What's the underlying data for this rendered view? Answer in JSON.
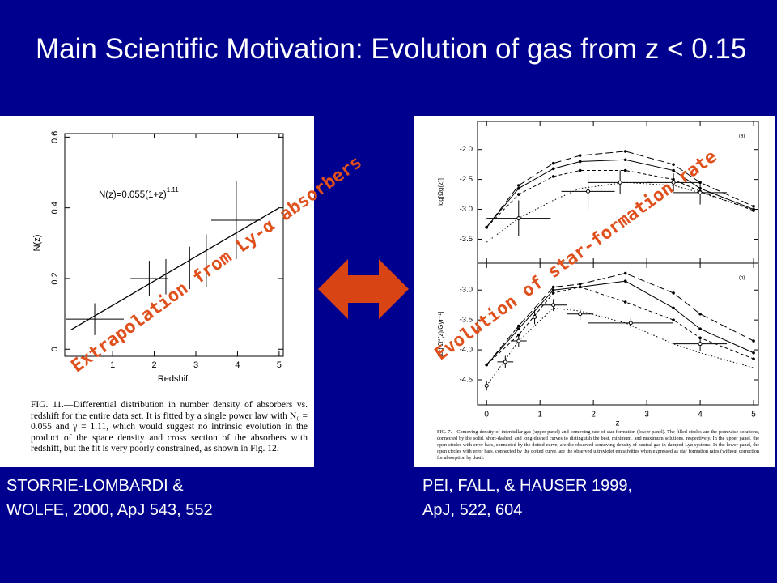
{
  "title": "Main Scientific Motivation:  Evolution of gas from z < 0.15",
  "left_figure": {
    "type": "scatter",
    "xlabel": "Redshift",
    "ylabel": "N(z)",
    "formula": "N(z)=0.055(1+z)",
    "formula_exponent": "1.11",
    "xlim": [
      -0.15,
      5.1
    ],
    "ylim": [
      -0.02,
      0.61
    ],
    "xticks": [
      1,
      2,
      3,
      4,
      5
    ],
    "yticks": [
      0,
      0.2,
      0.4,
      0.6
    ],
    "points": {
      "x": [
        0.57,
        1.88,
        2.28,
        2.85,
        3.25,
        3.97
      ],
      "y": [
        0.085,
        0.2,
        0.205,
        0.23,
        0.25,
        0.365
      ],
      "yerr": [
        0.045,
        0.05,
        0.05,
        0.06,
        0.075,
        0.11
      ],
      "xerr": [
        0.7,
        0.45,
        null,
        null,
        null,
        0.6
      ]
    },
    "fit": {
      "x": [
        0,
        5
      ],
      "y": [
        0.055,
        0.4
      ]
    },
    "caption": "FIG. 11.—Differential distribution in number density of absorbers vs. redshift for the entire data set. It is fitted by a single power law with N₀ = 0.055 and γ = 1.11, which would suggest no intrinsic evolution in the product of the space density and cross section of the absorbers with redshift, but the fit is very poorly constrained, as shown in Fig. 12."
  },
  "right_figure": {
    "type": "line",
    "xlabel": "z",
    "xlim": [
      -0.17,
      5.09
    ],
    "xticks": [
      0,
      1,
      2,
      3,
      4,
      5
    ],
    "x": [
      0,
      0.6,
      1.25,
      1.75,
      2.6,
      3.5,
      4,
      5
    ],
    "panels": [
      {
        "tag": "(a)",
        "ylabel": "log[Ωg(z)]",
        "ylim": [
          -3.9,
          -1.53
        ],
        "yticks": [
          {
            "value": -2.0,
            "label": "-2.0"
          },
          {
            "value": -2.5,
            "label": "-2.5"
          },
          {
            "value": -3.0,
            "label": "-3.0"
          },
          {
            "value": -3.5,
            "label": "-3.5"
          }
        ],
        "series": [
          {
            "style": "long-dash",
            "values": [
              -3.3,
              -2.6,
              -2.23,
              -2.1,
              -2.03,
              -2.25,
              -2.55,
              -2.95
            ]
          },
          {
            "style": "solid",
            "values": [
              -3.3,
              -2.65,
              -2.32,
              -2.2,
              -2.17,
              -2.35,
              -2.65,
              -3.0
            ]
          },
          {
            "style": "short-dash",
            "values": [
              -3.3,
              -2.75,
              -2.45,
              -2.35,
              -2.35,
              -2.5,
              -2.7,
              -3.02
            ]
          },
          {
            "style": "dotted",
            "values": [
              -3.55,
              -3.15,
              -2.85,
              -2.65,
              -2.55,
              -2.6,
              -2.72,
              -3.0
            ]
          }
        ],
        "points": {
          "x": [
            0.6,
            1.9,
            2.5,
            3.5,
            4.0
          ],
          "y": [
            -3.15,
            -2.7,
            -2.55,
            -2.55,
            -2.72
          ],
          "yerr": [
            0.3,
            0.3,
            0.2,
            0.15,
            0.2
          ],
          "xerr": [
            0.6,
            0.5,
            0.6,
            0.5,
            0.5
          ]
        }
      },
      {
        "tag": "(b)",
        "ylabel": "log[Ω̇*(z)/Gyr⁻¹]",
        "ylim": [
          -4.92,
          -2.55
        ],
        "yticks": [
          {
            "value": -3.0,
            "label": "-3.0"
          },
          {
            "value": -3.5,
            "label": "-3.5"
          },
          {
            "value": -4.0,
            "label": "-4.0"
          },
          {
            "value": -4.5,
            "label": "-4.5"
          }
        ],
        "series": [
          {
            "style": "long-dash",
            "values": [
              -4.25,
              -3.6,
              -2.95,
              -2.9,
              -2.72,
              -3.05,
              -3.4,
              -3.85
            ]
          },
          {
            "style": "solid",
            "values": [
              -4.25,
              -3.65,
              -3.0,
              -2.95,
              -2.85,
              -3.3,
              -3.65,
              -4.05
            ]
          },
          {
            "style": "short-dash",
            "values": [
              -4.25,
              -3.75,
              -3.05,
              -2.95,
              -3.2,
              -3.5,
              -3.8,
              -4.15
            ]
          },
          {
            "style": "dotted",
            "values": [
              -4.6,
              -3.85,
              -3.3,
              -3.35,
              -3.55,
              -3.9,
              -4.05,
              -4.3
            ]
          }
        ],
        "points": {
          "x": [
            0,
            0.35,
            0.6,
            0.9,
            1.25,
            1.75,
            2.7,
            4.0
          ],
          "y": [
            -4.6,
            -4.2,
            -3.85,
            -3.45,
            -3.25,
            -3.4,
            -3.55,
            -3.9
          ],
          "yerr": [
            0.08,
            0.1,
            0.1,
            0.12,
            0.1,
            0.1,
            0.08,
            0.12
          ],
          "xerr": [
            null,
            0.15,
            0.15,
            0.15,
            0.25,
            0.25,
            0.8,
            0.5
          ]
        }
      }
    ],
    "caption": "FIG. 7.—Comoving density of interstellar gas (upper panel) and comoving rate of star formation (lower panel). The filled circles are the pointwise solutions, connected by the solid, short-dashed, and long-dashed curves to distinguish the best, minimum, and maximum solutions, respectively. In the upper panel, the open circles with error bars, connected by the dotted curve, are the observed comoving density of neutral gas in damped Lyα systems. In the lower panel, the open circles with error bars, connected by the dotted curve, are the observed ultraviolet emissivities when expressed as star formation rates (without correction for absorption by dust)."
  },
  "annotations": {
    "left": "Extrapolation from Ly-α absorbers",
    "right": "Evolution of star-formation rate"
  },
  "references": {
    "left": [
      "STORRIE-LOMBARDI &",
      "WOLFE, 2000, ApJ 543, 552"
    ],
    "right": [
      "PEI,  FALL, & HAUSER 1999,",
      "ApJ, 522, 604"
    ]
  }
}
